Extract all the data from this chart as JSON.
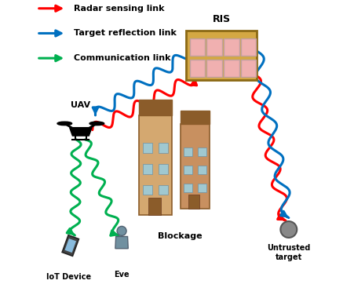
{
  "title": "",
  "background_color": "#ffffff",
  "legend_items": [
    {
      "label": "Radar sensing link",
      "color": "#ff0000"
    },
    {
      "label": "Target reflection link",
      "color": "#0070c0"
    },
    {
      "label": "Communication link",
      "color": "#00b050"
    }
  ],
  "fig_width": 4.52,
  "fig_height": 3.76,
  "uav": [
    0.17,
    0.56
  ],
  "ris": [
    0.53,
    0.73,
    0.24,
    0.17
  ],
  "iot": [
    0.13,
    0.14
  ],
  "eve": [
    0.31,
    0.16
  ],
  "target": [
    0.88,
    0.22
  ],
  "building1": [
    0.37,
    0.27,
    0.11,
    0.34
  ],
  "building2": [
    0.51,
    0.29,
    0.1,
    0.29
  ],
  "blockage_label": [
    0.51,
    0.21
  ],
  "ris_label": [
    0.65,
    0.92
  ],
  "uav_label": [
    0.17,
    0.63
  ],
  "iot_label": [
    0.13,
    0.07
  ],
  "eve_label": [
    0.31,
    0.08
  ],
  "target_label": [
    0.88,
    0.17
  ]
}
